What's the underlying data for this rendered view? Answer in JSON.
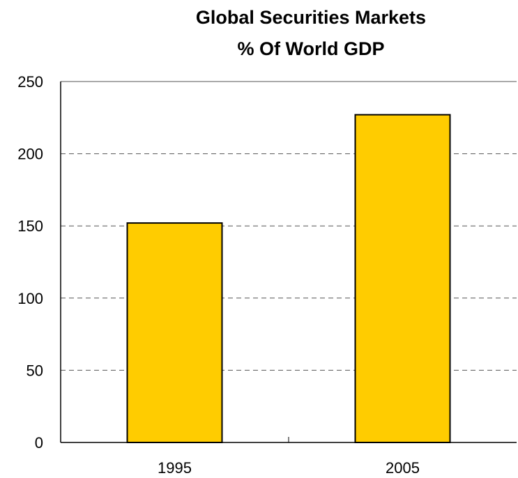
{
  "chart_data": {
    "type": "bar",
    "title_lines": [
      "Global Securities Markets",
      "% Of World GDP"
    ],
    "xlabel": "",
    "ylabel": "",
    "categories": [
      "1995",
      "2005"
    ],
    "values": [
      152,
      227
    ],
    "ylim": [
      0,
      250
    ],
    "yticks": [
      "0",
      "50",
      "100",
      "150",
      "200",
      "250"
    ],
    "grid": true,
    "legend": "none",
    "colors": {
      "bar": "#FFCC00",
      "bar_outline": "#000000",
      "grid": "#555555"
    }
  }
}
